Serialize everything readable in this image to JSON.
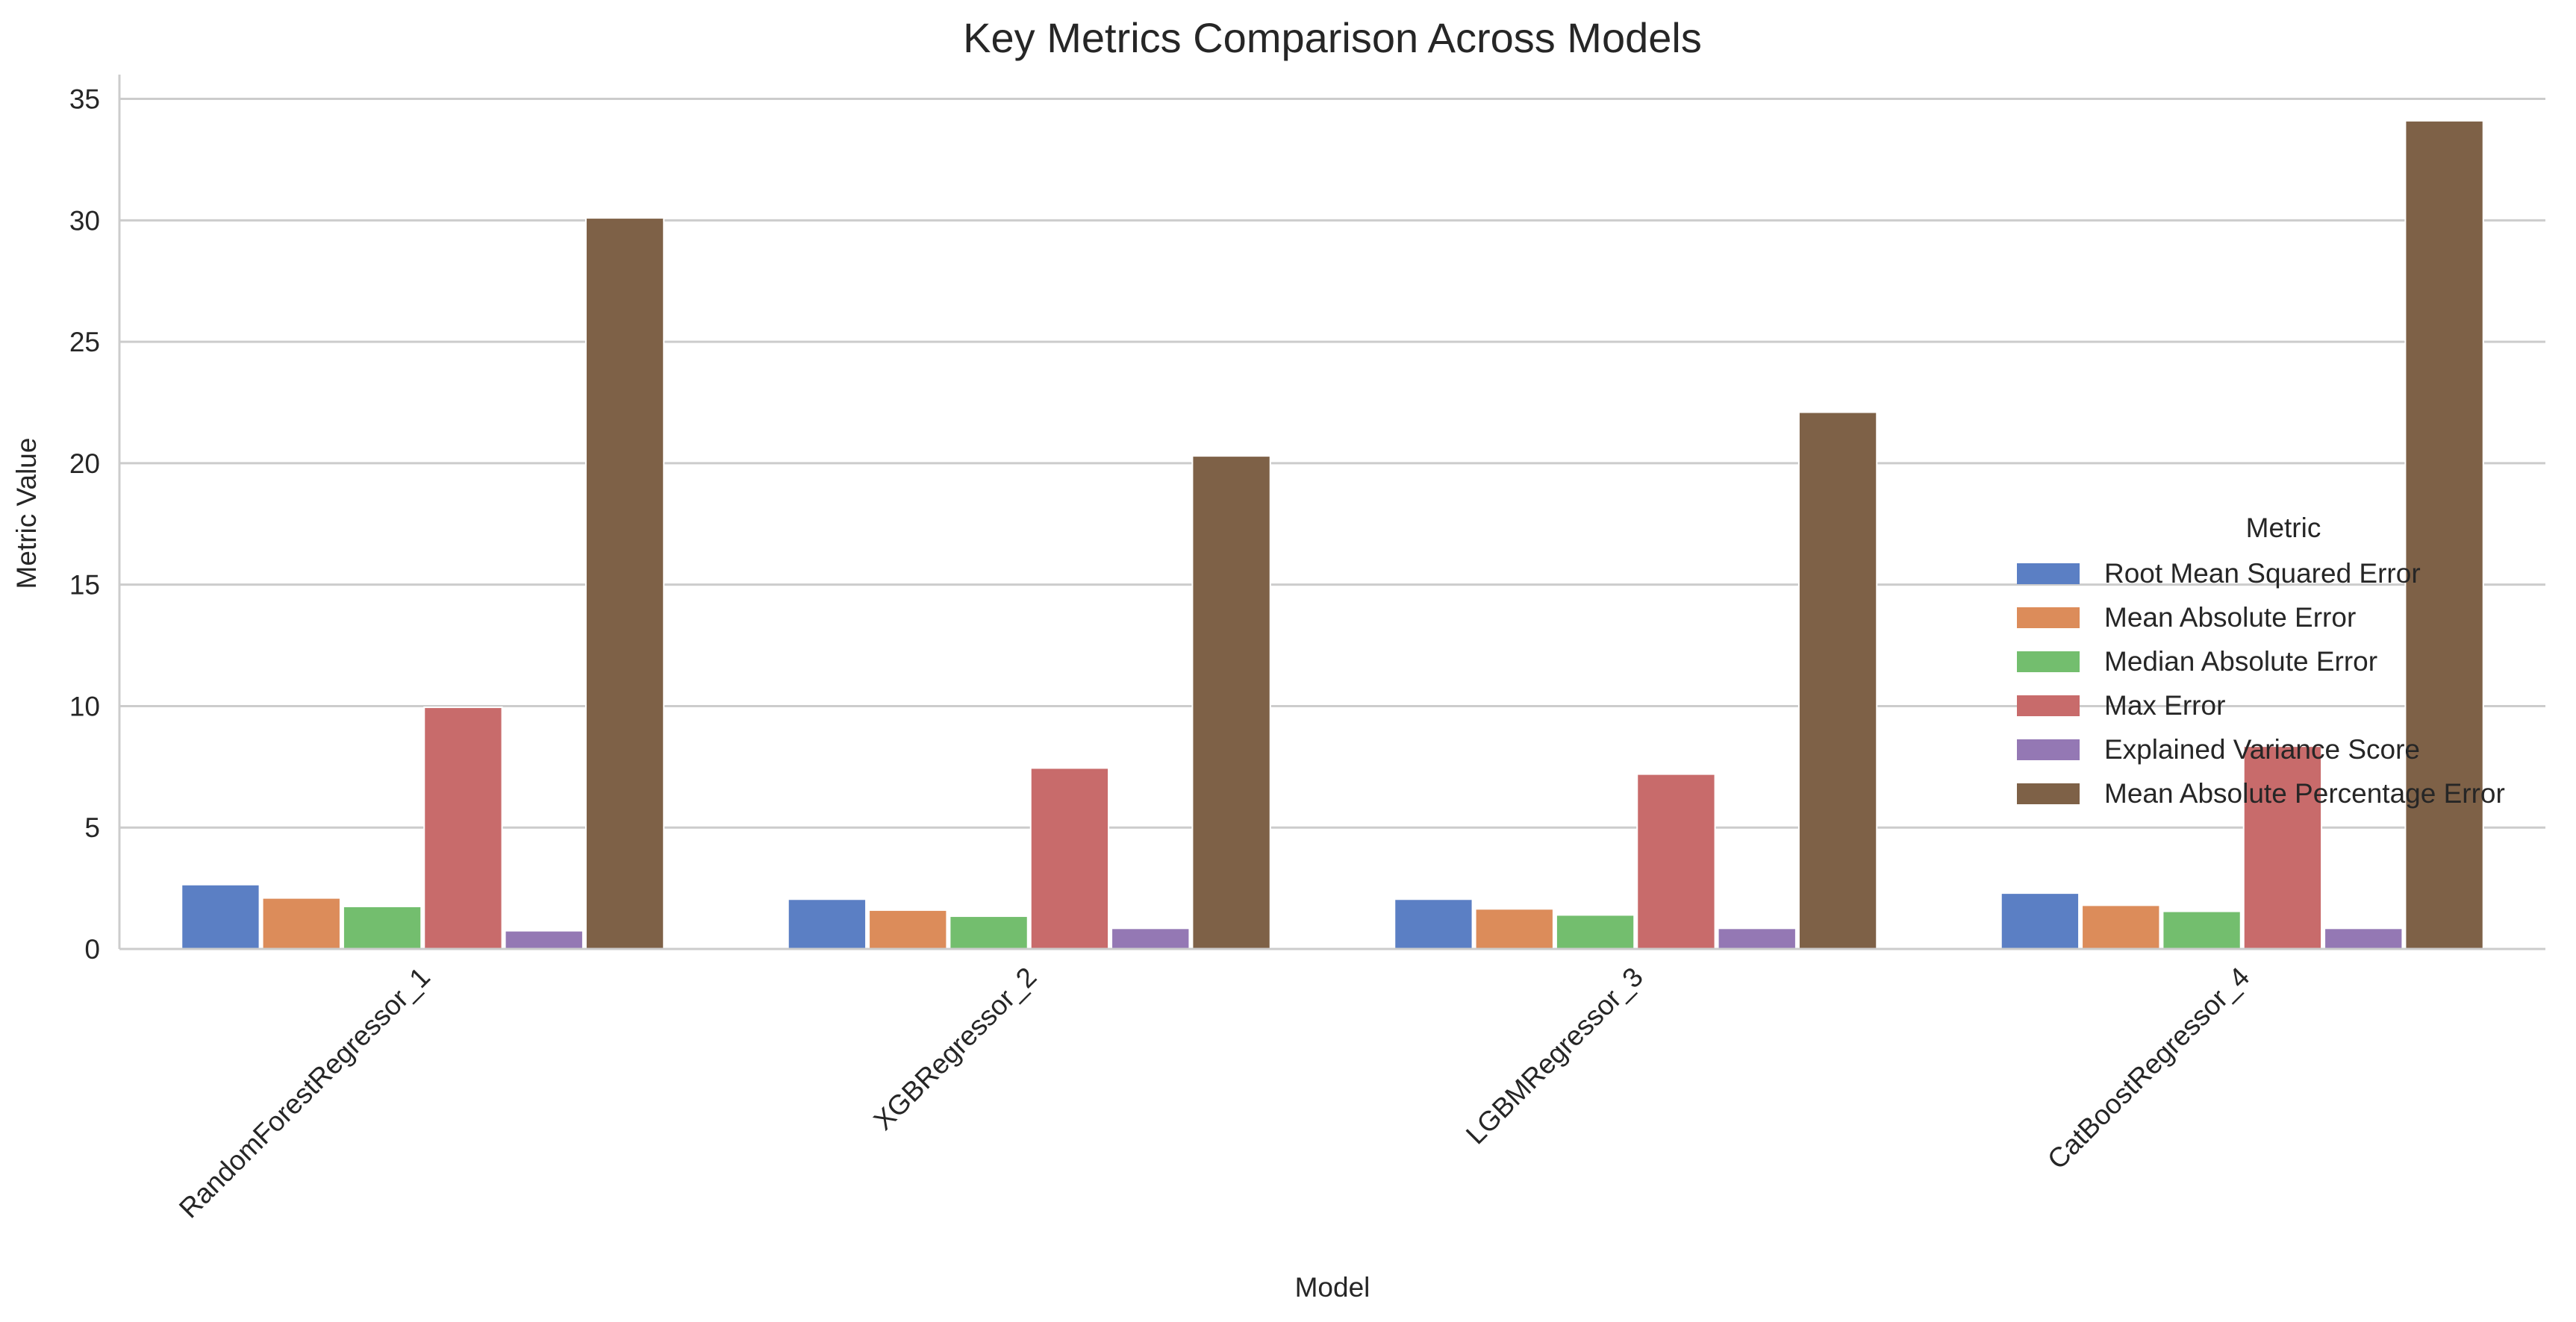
{
  "chart_data": {
    "type": "bar",
    "title": "Key Metrics Comparison Across Models",
    "xlabel": "Model",
    "ylabel": "Metric Value",
    "categories": [
      "RandomForestRegressor_1",
      "XGBRegressor_2",
      "LGBMRegressor_3",
      "CatBoostRegressor_4"
    ],
    "ylim": [
      0,
      36
    ],
    "yticks": [
      0,
      5,
      10,
      15,
      20,
      25,
      30,
      35
    ],
    "grid": "horizontal",
    "legend": {
      "title": "Metric",
      "placement": "center-right"
    },
    "series": [
      {
        "name": "Root Mean Squared Error",
        "color": "#5b7fc4",
        "values": [
          2.65,
          2.05,
          2.05,
          2.3
        ]
      },
      {
        "name": "Mean Absolute Error",
        "color": "#dc8c5a",
        "values": [
          2.1,
          1.6,
          1.65,
          1.8
        ]
      },
      {
        "name": "Median Absolute Error",
        "color": "#73be6e",
        "values": [
          1.75,
          1.35,
          1.4,
          1.55
        ]
      },
      {
        "name": "Max Error",
        "color": "#c86b6b",
        "values": [
          9.95,
          7.45,
          7.2,
          8.35
        ]
      },
      {
        "name": "Explained Variance Score",
        "color": "#9478b4",
        "values": [
          0.75,
          0.85,
          0.85,
          0.85
        ]
      },
      {
        "name": "Mean Absolute Percentage Error",
        "color": "#7e6147",
        "values": [
          30.1,
          20.3,
          22.1,
          34.1
        ]
      }
    ]
  }
}
